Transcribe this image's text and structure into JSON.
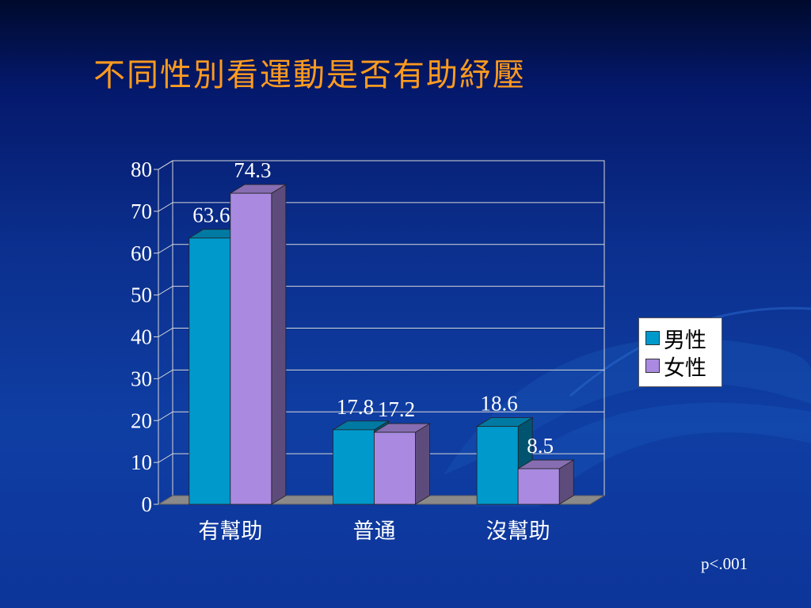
{
  "slide": {
    "title": "不同性別看運動是否有助紓壓",
    "footnote": "p<.001"
  },
  "colors": {
    "background": "#0f3ea3",
    "title": "#ff9b1f",
    "male": "#0099cc",
    "female": "#a98ae0"
  },
  "chart_data": {
    "type": "bar",
    "style": "3d-clustered-column",
    "title": "",
    "xlabel": "",
    "ylabel": "",
    "categories": [
      "有幫助",
      "普通",
      "沒幫助"
    ],
    "series": [
      {
        "name": "男性",
        "values": [
          63.6,
          17.8,
          18.6
        ],
        "labels": [
          "63.6",
          "17.8",
          "18.6"
        ],
        "color": "#0099cc"
      },
      {
        "name": "女性",
        "values": [
          74.3,
          17.2,
          8.5
        ],
        "labels": [
          "74.3",
          "17.2",
          "8.5"
        ],
        "color": "#a98ae0"
      }
    ],
    "ylim": [
      0,
      80
    ],
    "yticks": [
      "0",
      "10",
      "20",
      "30",
      "40",
      "50",
      "60",
      "70",
      "80"
    ],
    "grid": true,
    "legend": "right"
  }
}
